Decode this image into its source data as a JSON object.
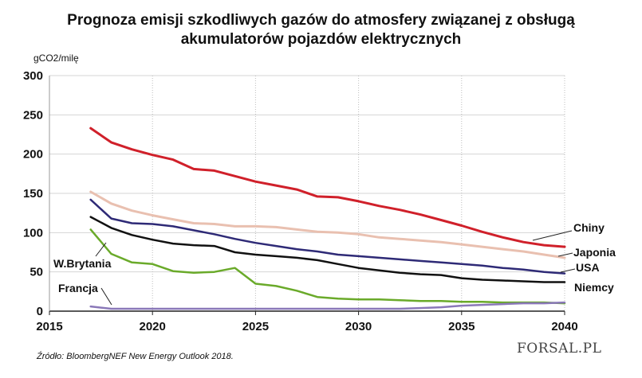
{
  "title_line1": "Prognoza emisji szkodliwych gazów do atmosfery związanej z obsługą",
  "title_line2": "akumulatorów pojazdów elektrycznych",
  "source": "Źródło:  BloombergNEF New Energy Outlook 2018.",
  "logo": "FORSAL.PL",
  "chart_data": {
    "type": "line",
    "title": "Prognoza emisji szkodliwych gazów do atmosfery związanej z obsługą akumulatorów pojazdów elektrycznych",
    "ylabel": "gCO2/milę",
    "xlim": [
      2015,
      2040
    ],
    "ylim": [
      0,
      300
    ],
    "x_ticks": [
      2015,
      2020,
      2025,
      2030,
      2035,
      2040
    ],
    "y_ticks": [
      0,
      50,
      100,
      150,
      200,
      250,
      300
    ],
    "grid": true,
    "x": [
      2017,
      2018,
      2019,
      2020,
      2021,
      2022,
      2023,
      2024,
      2025,
      2026,
      2027,
      2028,
      2029,
      2030,
      2031,
      2032,
      2033,
      2034,
      2035,
      2036,
      2037,
      2038,
      2039,
      2040
    ],
    "series": [
      {
        "name": "Chiny",
        "color": "#d0202a",
        "values": [
          233,
          215,
          206,
          199,
          193,
          181,
          179,
          172,
          165,
          160,
          155,
          146,
          145,
          140,
          134,
          129,
          123,
          116,
          109,
          101,
          94,
          88,
          84,
          82
        ]
      },
      {
        "name": "Japonia",
        "color": "#e9c0b0",
        "values": [
          152,
          137,
          128,
          122,
          117,
          112,
          111,
          108,
          108,
          107,
          104,
          101,
          100,
          98,
          94,
          92,
          90,
          88,
          85,
          82,
          79,
          76,
          72,
          68
        ]
      },
      {
        "name": "USA",
        "color": "#2e2a76",
        "values": [
          142,
          118,
          112,
          111,
          108,
          103,
          98,
          92,
          87,
          83,
          79,
          76,
          72,
          70,
          68,
          66,
          64,
          62,
          60,
          58,
          55,
          53,
          50,
          48
        ]
      },
      {
        "name": "Niemcy",
        "color": "#111111",
        "values": [
          120,
          106,
          97,
          91,
          86,
          84,
          83,
          75,
          72,
          70,
          68,
          65,
          60,
          55,
          52,
          49,
          47,
          46,
          42,
          40,
          39,
          38,
          37,
          37
        ]
      },
      {
        "name": "W.Brytania",
        "color": "#6aaa2a",
        "values": [
          104,
          73,
          62,
          60,
          51,
          49,
          50,
          55,
          35,
          32,
          26,
          18,
          16,
          15,
          15,
          14,
          13,
          13,
          12,
          12,
          11,
          11,
          11,
          10
        ]
      },
      {
        "name": "Francja",
        "color": "#8a78b8",
        "values": [
          6,
          3,
          3,
          3,
          3,
          3,
          3,
          3,
          3,
          3,
          3,
          3,
          3,
          3,
          3,
          3,
          4,
          5,
          7,
          8,
          9,
          10,
          10,
          11
        ]
      }
    ]
  }
}
